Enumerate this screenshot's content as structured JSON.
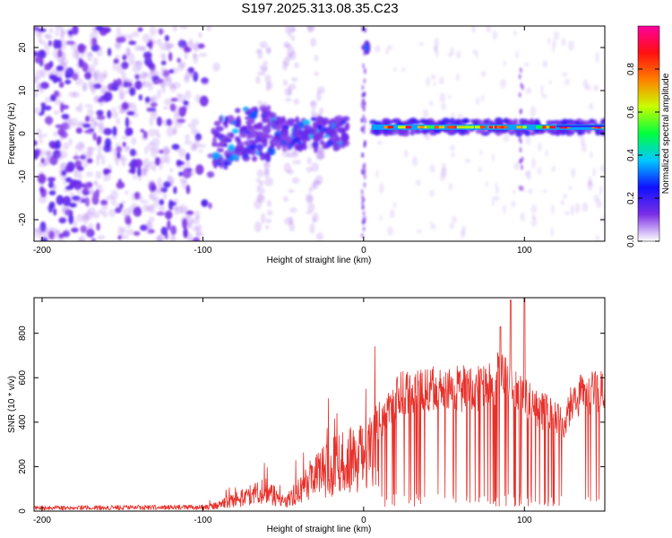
{
  "title": "S197.2025.313.08.35.C23",
  "chart_data": [
    {
      "type": "heatmap",
      "title": "S197.2025.313.08.35.C23",
      "xlabel": "Height of straight line (km)",
      "ylabel": "Frequency (Hz)",
      "xlim": [
        -205,
        150
      ],
      "ylim": [
        -25,
        25
      ],
      "xticks": [
        -200,
        -100,
        0,
        100
      ],
      "yticks": [
        -20,
        -10,
        0,
        10,
        20
      ],
      "grid": false,
      "colorbar": {
        "label": "Normalized spectral amplitude",
        "range": [
          0,
          1
        ],
        "ticks": [
          "0.0",
          "0.2",
          "0.4",
          "0.6",
          "0.8"
        ],
        "tick_values": [
          0.0,
          0.2,
          0.4,
          0.6,
          0.8
        ],
        "colors": [
          "#ffffff",
          "#7b2ee6",
          "#1010ff",
          "#00c8ff",
          "#00ff40",
          "#c8ff00",
          "#ff8000",
          "#ff1010",
          "#ff00a0"
        ]
      },
      "features": {
        "noise_region_km": [
          -205,
          -95
        ],
        "gap_column_km": 0,
        "carrier_line_hz": 1.5,
        "carrier_start_km": 5,
        "carrier_end_km": 150,
        "burst_at_km": 2,
        "burst_freq_hz": 20
      }
    },
    {
      "type": "line",
      "xlabel": "Height of straight line (km)",
      "ylabel": "SNR (10 * v/v)",
      "xlim": [
        -205,
        150
      ],
      "ylim": [
        0,
        960
      ],
      "xticks": [
        -200,
        -100,
        0,
        100
      ],
      "yticks": [
        0,
        200,
        400,
        600,
        800
      ],
      "grid": false,
      "series": [
        {
          "name": "SNR",
          "color": "#e8302a",
          "envelope_x": [
            -205,
            -100,
            -90,
            -75,
            -65,
            -55,
            -50,
            -40,
            -30,
            -20,
            -10,
            0,
            10,
            15,
            20,
            30,
            40,
            60,
            80,
            85,
            90,
            100,
            110,
            120,
            125,
            130,
            140,
            150
          ],
          "envelope_y": [
            15,
            18,
            40,
            80,
            120,
            90,
            45,
            130,
            210,
            260,
            310,
            320,
            400,
            480,
            560,
            590,
            600,
            595,
            605,
            700,
            620,
            560,
            490,
            470,
            410,
            560,
            570,
            580
          ],
          "peaks_x": [
            85,
            91.5,
            100
          ],
          "peaks_y": [
            830,
            950,
            1000
          ]
        }
      ]
    }
  ]
}
